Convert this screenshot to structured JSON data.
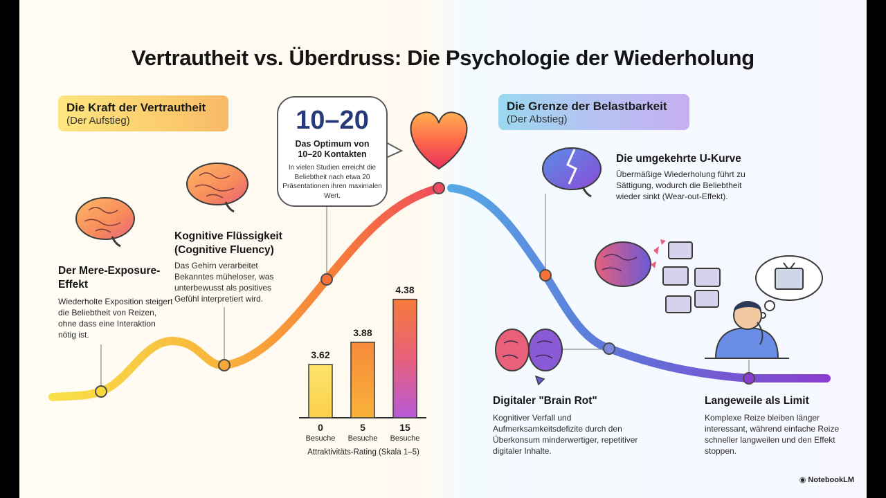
{
  "title": "Vertrautheit vs. Überdruss: Die Psychologie der Wiederholung",
  "left_banner": {
    "title": "Die Kraft der Vertrautheit",
    "subtitle": "(Der Aufstieg)"
  },
  "right_banner": {
    "title": "Die Grenze der Belastbarkeit",
    "subtitle": "(Der Abstieg)"
  },
  "sections": {
    "mere_exposure": {
      "heading_line1": "Der Mere-Exposure-",
      "heading_line2": "Effekt",
      "text": "Wiederholte Exposition steigert die Beliebtheit von Reizen, ohne dass eine Interaktion nötig ist."
    },
    "fluency": {
      "heading_line1": "Kognitive Flüssigkeit",
      "heading_line2": "(Cognitive Fluency)",
      "text": "Das Gehirn verarbeitet Bekanntes müheloser, was unterbewusst als positives Gefühl interpretiert wird."
    },
    "optimum": {
      "number": "10–20",
      "heading_line1": "Das Optimum von",
      "heading_line2": "10–20 Kontakten",
      "text": "In vielen Studien erreicht die Beliebtheit nach etwa 20 Präsentationen ihren maximalen Wert."
    },
    "u_curve": {
      "heading": "Die umgekehrte U-Kurve",
      "text": "Übermäßige Wiederholung führt zu Sättigung, wodurch die Beliebtheit wieder sinkt (Wear-out-Effekt)."
    },
    "brain_rot": {
      "heading": "Digitaler \"Brain Rot\"",
      "text": "Kognitiver Verfall und Aufmerksamkeitsdefizite durch den Überkonsum minderwertiger, repetitiver digitaler Inhalte."
    },
    "boredom": {
      "heading": "Langeweile als Limit",
      "text": "Komplexe Reize bleiben länger interessant, während einfache Reize schneller langweilen und den Effekt stoppen."
    }
  },
  "chart_data": {
    "type": "bar",
    "categories": [
      "0",
      "5",
      "15"
    ],
    "category_sub": "Besuche",
    "values": [
      3.62,
      3.88,
      4.38
    ],
    "value_labels": [
      "3.62",
      "3.88",
      "4.38"
    ],
    "xlabel": "Attraktivitäts-Rating (Skala 1–5)",
    "ylabel": "",
    "ylim": [
      3.0,
      4.45
    ]
  },
  "footer": "NotebookLM",
  "colors": {
    "rise_start": "#f9d93a",
    "rise_end": "#ef4b5f",
    "fall_start": "#5aa9e6",
    "fall_end": "#7b3fd0"
  },
  "icons": [
    "brain-icon",
    "heart-icon",
    "broken-brain-icon",
    "tv-icon",
    "thought-bubble-icon",
    "bored-person-icon"
  ]
}
